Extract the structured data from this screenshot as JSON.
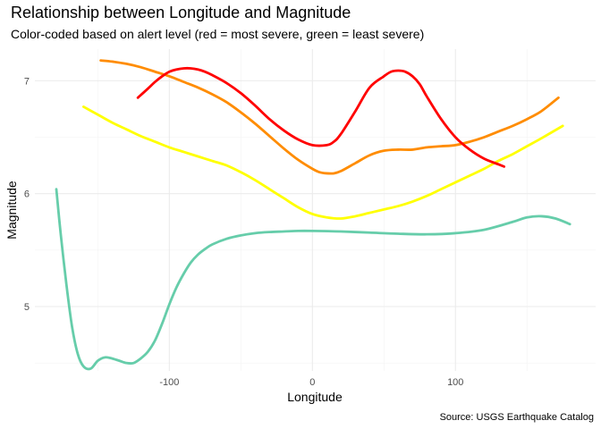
{
  "chart_data": {
    "type": "line",
    "title": "Relationship between Longitude and Magnitude",
    "subtitle": "Color-coded based on alert level (red = most severe, green = least severe)",
    "caption": "Source: USGS Earthquake Catalog",
    "xlabel": "Longitude",
    "ylabel": "Magnitude",
    "xlim": [
      -194,
      198
    ],
    "ylim": [
      4.43,
      7.28
    ],
    "x_ticks": [
      -100,
      0,
      100
    ],
    "y_ticks": [
      5,
      6,
      7
    ],
    "grid": true,
    "legend": "none",
    "series": [
      {
        "color": "#66CDAA",
        "x": [
          -179,
          -176,
          -172,
          -168,
          -164,
          -160,
          -155,
          -150,
          -145,
          -140,
          -135,
          -130,
          -125,
          -120,
          -115,
          -110,
          -105,
          -100,
          -95,
          -90,
          -85,
          -80,
          -75,
          -70,
          -60,
          -50,
          -40,
          -30,
          -20,
          -10,
          0,
          20,
          40,
          60,
          80,
          100,
          120,
          140,
          150,
          160,
          170,
          180
        ],
        "y": [
          6.04,
          5.65,
          5.2,
          4.82,
          4.58,
          4.47,
          4.45,
          4.52,
          4.55,
          4.54,
          4.52,
          4.5,
          4.5,
          4.54,
          4.6,
          4.7,
          4.85,
          5.02,
          5.17,
          5.29,
          5.39,
          5.46,
          5.51,
          5.55,
          5.6,
          5.63,
          5.65,
          5.66,
          5.665,
          5.67,
          5.67,
          5.665,
          5.655,
          5.645,
          5.64,
          5.65,
          5.68,
          5.75,
          5.79,
          5.8,
          5.78,
          5.73
        ]
      },
      {
        "color": "#FFFF00",
        "x": [
          -160,
          -150,
          -140,
          -130,
          -120,
          -110,
          -100,
          -90,
          -80,
          -70,
          -60,
          -50,
          -40,
          -30,
          -20,
          -10,
          0,
          10,
          20,
          30,
          40,
          50,
          60,
          70,
          80,
          90,
          100,
          110,
          120,
          130,
          140,
          150,
          160,
          175
        ],
        "y": [
          6.77,
          6.7,
          6.63,
          6.57,
          6.51,
          6.46,
          6.41,
          6.37,
          6.33,
          6.29,
          6.25,
          6.19,
          6.12,
          6.04,
          5.96,
          5.88,
          5.82,
          5.79,
          5.78,
          5.8,
          5.83,
          5.86,
          5.89,
          5.93,
          5.98,
          6.04,
          6.1,
          6.16,
          6.22,
          6.29,
          6.35,
          6.42,
          6.49,
          6.6
        ]
      },
      {
        "color": "#FF8C00",
        "x": [
          -148,
          -140,
          -130,
          -120,
          -110,
          -100,
          -90,
          -80,
          -70,
          -60,
          -50,
          -40,
          -30,
          -20,
          -10,
          0,
          5,
          10,
          15,
          20,
          30,
          40,
          50,
          60,
          70,
          80,
          90,
          100,
          110,
          120,
          130,
          140,
          150,
          160,
          172
        ],
        "y": [
          7.18,
          7.17,
          7.15,
          7.12,
          7.08,
          7.04,
          6.99,
          6.94,
          6.88,
          6.81,
          6.72,
          6.62,
          6.51,
          6.4,
          6.3,
          6.22,
          6.19,
          6.18,
          6.18,
          6.2,
          6.27,
          6.34,
          6.38,
          6.39,
          6.39,
          6.41,
          6.42,
          6.43,
          6.46,
          6.5,
          6.55,
          6.6,
          6.66,
          6.73,
          6.85
        ]
      },
      {
        "color": "#FF0000",
        "x": [
          -122,
          -115,
          -110,
          -105,
          -100,
          -95,
          -90,
          -85,
          -80,
          -75,
          -70,
          -60,
          -50,
          -40,
          -30,
          -20,
          -10,
          0,
          10,
          15,
          20,
          30,
          40,
          50,
          55,
          60,
          65,
          70,
          75,
          80,
          90,
          100,
          110,
          120,
          130,
          134
        ],
        "y": [
          6.85,
          6.93,
          6.99,
          7.04,
          7.08,
          7.1,
          7.11,
          7.11,
          7.1,
          7.08,
          7.05,
          6.98,
          6.89,
          6.78,
          6.66,
          6.56,
          6.48,
          6.43,
          6.43,
          6.46,
          6.53,
          6.73,
          6.94,
          7.04,
          7.08,
          7.09,
          7.08,
          7.04,
          6.97,
          6.86,
          6.66,
          6.5,
          6.39,
          6.31,
          6.26,
          6.24
        ]
      }
    ]
  }
}
